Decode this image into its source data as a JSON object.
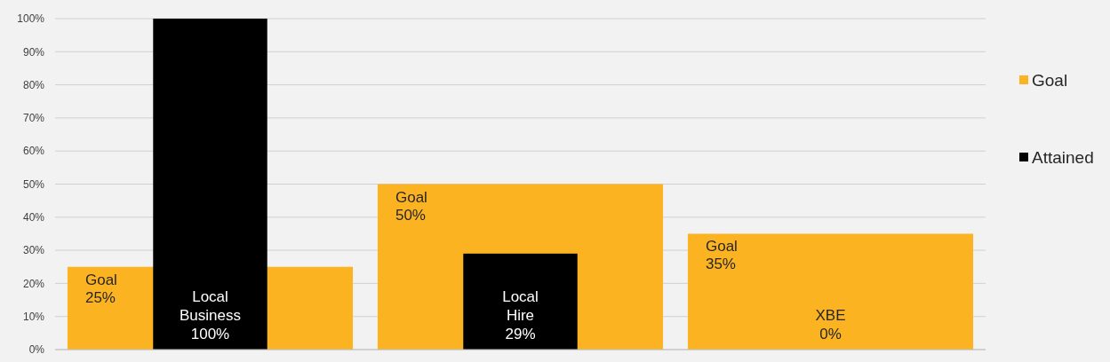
{
  "chart_data": {
    "type": "bar",
    "categories": [
      "Local Business",
      "Local Hire",
      "XBE"
    ],
    "series": [
      {
        "name": "Goal",
        "color": "#fbb321",
        "values": [
          25,
          50,
          35
        ],
        "value_labels": [
          "25%",
          "50%",
          "35%"
        ]
      },
      {
        "name": "Attained",
        "color": "#000000",
        "values": [
          100,
          29,
          0
        ],
        "value_labels": [
          "100%",
          "29%",
          "0%"
        ]
      }
    ],
    "ylim": [
      0,
      100
    ],
    "yticks": [
      {
        "value": 0,
        "label": "0%"
      },
      {
        "value": 10,
        "label": "10%"
      },
      {
        "value": 20,
        "label": "20%"
      },
      {
        "value": 30,
        "label": "30%"
      },
      {
        "value": 40,
        "label": "40%"
      },
      {
        "value": 50,
        "label": "50%"
      },
      {
        "value": 60,
        "label": "60%"
      },
      {
        "value": 70,
        "label": "70%"
      },
      {
        "value": 80,
        "label": "80%"
      },
      {
        "value": 90,
        "label": "90%"
      },
      {
        "value": 100,
        "label": "100%"
      }
    ],
    "grid": true,
    "legend": "right"
  }
}
